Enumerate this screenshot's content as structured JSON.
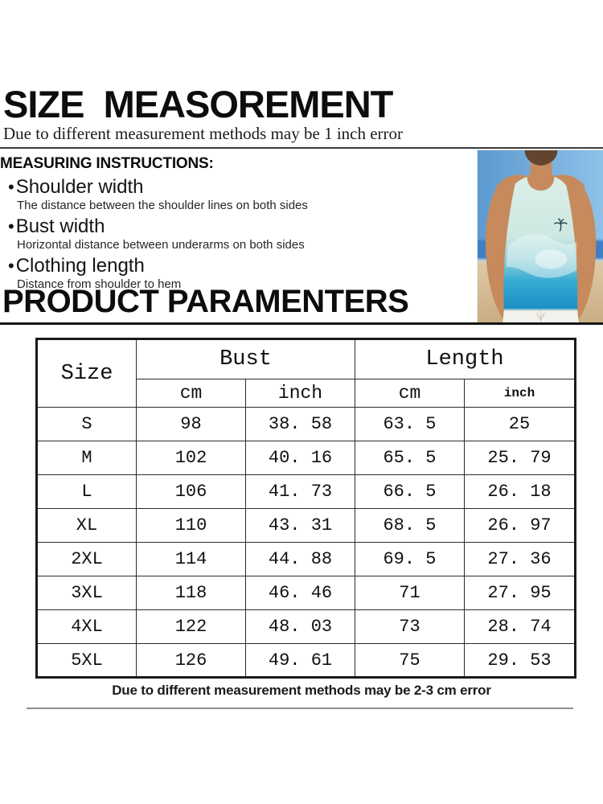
{
  "page": {
    "title": "SIZE  MEASOREMENT",
    "subtitle": "Due to different measurement methods may be 1 inch error",
    "footer_note": "Due to different measurement methods may be 2-3 cm error"
  },
  "instructions": {
    "heading": "MEASURING INSTRUCTIONS:",
    "bullet_glyph": "•",
    "items": [
      {
        "label": "Shoulder width",
        "description": "The distance between the shoulder lines on both sides"
      },
      {
        "label": "Bust width",
        "description": "Horizontal distance between underarms on both sides"
      },
      {
        "label": "Clothing length",
        "description": "Distance from shoulder to hem"
      }
    ]
  },
  "product": {
    "heading": "PRODUCT PARAMENTERS"
  },
  "size_chart": {
    "col_size": "Size",
    "col_bust": "Bust",
    "col_length": "Length",
    "unit_cm": "cm",
    "unit_inch": "inch",
    "rows": [
      {
        "size": "S",
        "bust_cm": "98",
        "bust_inch": "38. 58",
        "length_cm": "63. 5",
        "length_inch": "25"
      },
      {
        "size": "M",
        "bust_cm": "102",
        "bust_inch": "40. 16",
        "length_cm": "65. 5",
        "length_inch": "25. 79"
      },
      {
        "size": "L",
        "bust_cm": "106",
        "bust_inch": "41. 73",
        "length_cm": "66. 5",
        "length_inch": "26. 18"
      },
      {
        "size": "XL",
        "bust_cm": "110",
        "bust_inch": "43. 31",
        "length_cm": "68. 5",
        "length_inch": "26. 97"
      },
      {
        "size": "2XL",
        "bust_cm": "114",
        "bust_inch": "44. 88",
        "length_cm": "69. 5",
        "length_inch": "27. 36"
      },
      {
        "size": "3XL",
        "bust_cm": "118",
        "bust_inch": "46. 46",
        "length_cm": "71",
        "length_inch": "27. 95"
      },
      {
        "size": "4XL",
        "bust_cm": "122",
        "bust_inch": "48. 03",
        "length_cm": "73",
        "length_inch": "28. 74"
      },
      {
        "size": "5XL",
        "bust_cm": "126",
        "bust_inch": "49. 61",
        "length_cm": "75",
        "length_inch": "29. 53"
      }
    ]
  },
  "photo": {
    "alt": "Man on a beach wearing a mint-to-blue gradient tank top and white shorts",
    "colors": {
      "sky1": "#5b99cf",
      "sky2": "#8fc2e9",
      "ocean": "#3c7fc2",
      "sand1": "#dfc9a6",
      "sand2": "#c8ab80",
      "skin": "#c68a5d",
      "shirt_top": "#dceee8",
      "shirt_bottom": "#1b8ec4",
      "shorts": "#f2f1ec"
    }
  }
}
